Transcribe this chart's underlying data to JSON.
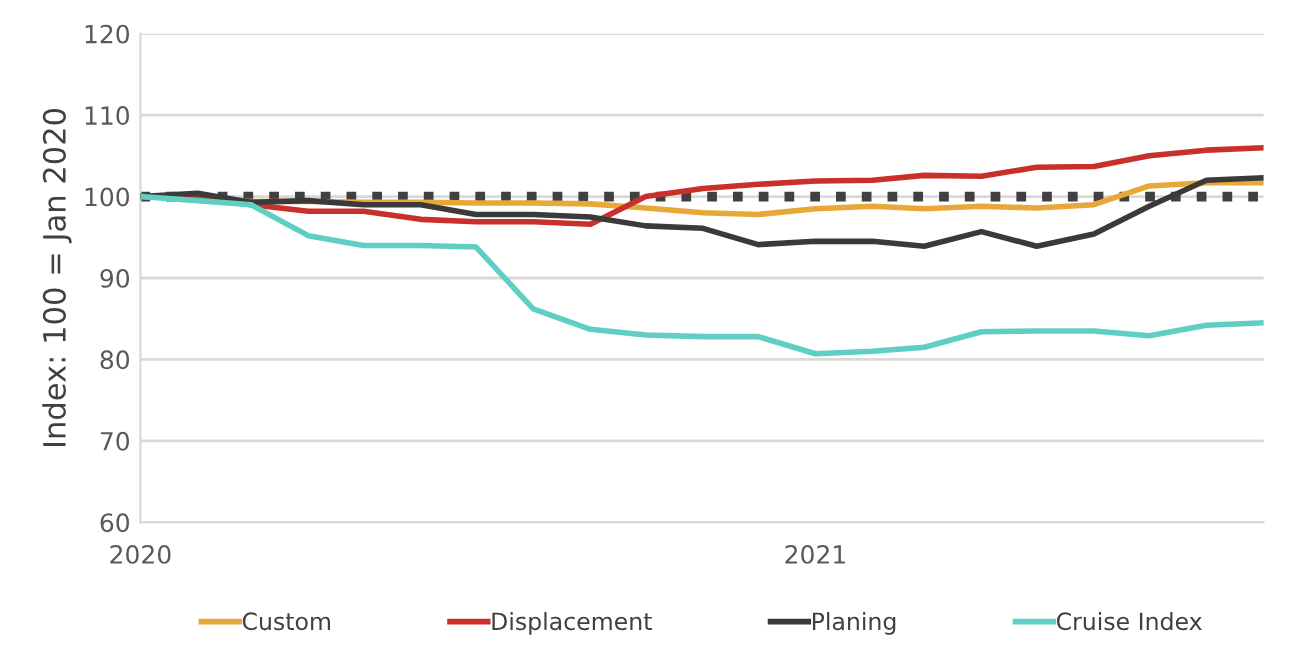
{
  "chart_data": {
    "type": "line",
    "ylabel": "Index: 100 = Jan 2020",
    "x": [
      "2020-01",
      "2020-02",
      "2020-03",
      "2020-04",
      "2020-05",
      "2020-06",
      "2020-07",
      "2020-08",
      "2020-09",
      "2020-10",
      "2020-11",
      "2020-12",
      "2021-01",
      "2021-02",
      "2021-03",
      "2021-04",
      "2021-05",
      "2021-06",
      "2021-07",
      "2021-08",
      "2021-09"
    ],
    "series": [
      {
        "name": "Custom",
        "color": "#e8a838",
        "values": [
          100,
          99.8,
          99.4,
          99.4,
          99.3,
          99.3,
          99.2,
          99.2,
          99.1,
          98.6,
          98,
          97.8,
          98.5,
          98.8,
          98.5,
          98.8,
          98.6,
          99,
          101.3,
          101.7,
          101.7
        ]
      },
      {
        "name": "Displacement",
        "color": "#c9302c",
        "values": [
          100,
          100,
          99,
          98.2,
          98.2,
          97.2,
          96.9,
          96.9,
          96.6,
          100,
          101,
          101.5,
          101.9,
          102,
          102.6,
          102.5,
          103.6,
          103.7,
          105,
          105.7,
          106
        ]
      },
      {
        "name": "Planing",
        "color": "#3a3a3a",
        "values": [
          100,
          100.4,
          99.3,
          99.5,
          99,
          99,
          97.8,
          97.8,
          97.5,
          96.4,
          96.1,
          94.1,
          94.5,
          94.5,
          93.9,
          95.7,
          93.9,
          95.4,
          98.8,
          102,
          102.3
        ]
      },
      {
        "name": "Cruise Index",
        "color": "#5fcfc3",
        "values": [
          100,
          99.5,
          99,
          95.2,
          94,
          94,
          93.8,
          86.2,
          83.7,
          83,
          82.8,
          82.8,
          80.7,
          81,
          81.5,
          83.4,
          83.5,
          83.5,
          82.9,
          84.2,
          84.5
        ]
      }
    ],
    "xlim": [
      "2020-01",
      "2021-09"
    ],
    "xticks": [
      {
        "value": "2020-01",
        "label": "2020"
      },
      {
        "value": "2021-01",
        "label": "2021"
      }
    ],
    "ylim": [
      60,
      120
    ],
    "yticks": [
      60,
      70,
      80,
      90,
      100,
      110,
      120
    ],
    "ref_lines": [
      {
        "axis": "y",
        "value": 100,
        "color": "#404040",
        "line_style": "dotted"
      }
    ],
    "grid": "y",
    "legend": "bottom",
    "marker": "none",
    "line_style": "solid"
  }
}
